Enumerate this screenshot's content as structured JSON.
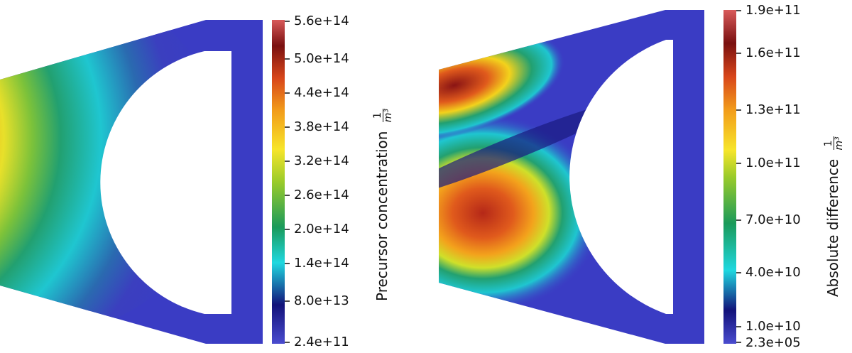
{
  "panels": [
    {
      "colorbar": {
        "title": "Precursor concentration",
        "unit_numerator": "1",
        "unit_denominator": "m³",
        "ticks": [
          "5.6e+14",
          "5.0e+14",
          "4.4e+14",
          "3.8e+14",
          "3.2e+14",
          "2.6e+14",
          "2.0e+14",
          "1.4e+14",
          "8.0e+13",
          "2.4e+11"
        ]
      }
    },
    {
      "colorbar": {
        "title": "Absolute difference",
        "unit_numerator": "1",
        "unit_denominator": "m³",
        "ticks": [
          "1.9e+11",
          "1.6e+11",
          "1.3e+11",
          "1.0e+11",
          "7.0e+10",
          "4.0e+10",
          "1.0e+10",
          "2.3e+05"
        ]
      }
    }
  ],
  "colors": {
    "low": "#3b3fcf",
    "high": "#d94a4a",
    "background": "#ffffff"
  }
}
